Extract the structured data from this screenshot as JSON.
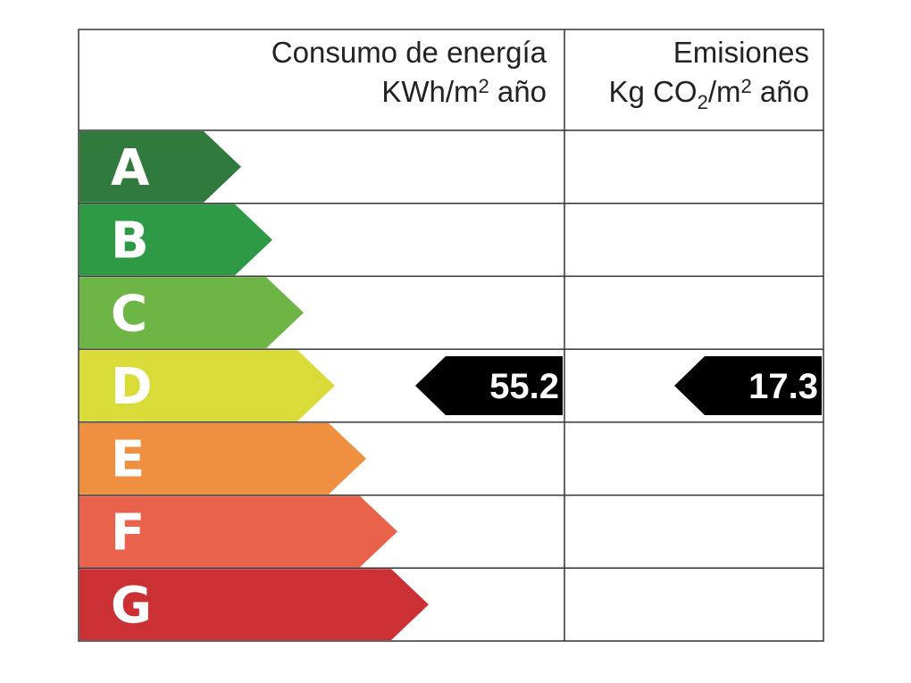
{
  "header": {
    "energy": {
      "title": "Consumo de energía",
      "unit": [
        "KWh/m",
        "2",
        " año"
      ]
    },
    "emissions": {
      "title": "Emisiones",
      "unit": [
        "Kg CO",
        "2",
        "/m",
        "2",
        " año"
      ]
    }
  },
  "classes": [
    {
      "letter": "A",
      "color": "#2f7a3c"
    },
    {
      "letter": "B",
      "color": "#2f9a46"
    },
    {
      "letter": "C",
      "color": "#6db544"
    },
    {
      "letter": "D",
      "color": "#d9dc38"
    },
    {
      "letter": "E",
      "color": "#ef8f40"
    },
    {
      "letter": "F",
      "color": "#e9624b"
    },
    {
      "letter": "G",
      "color": "#cb3034"
    }
  ],
  "rating": {
    "energy": {
      "class": "D",
      "value": 55.2
    },
    "emissions": {
      "class": "D",
      "value": 17.3
    }
  }
}
